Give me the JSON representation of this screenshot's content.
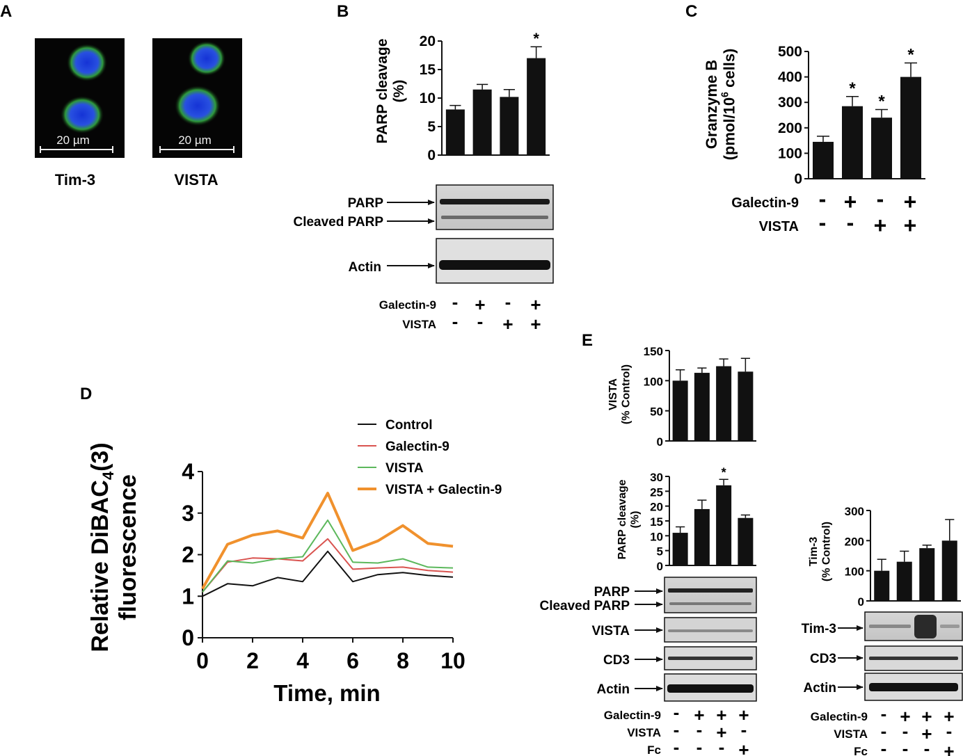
{
  "colors": {
    "bar": "#111111",
    "control": "#111111",
    "galectin": "#d9534f",
    "vista": "#5cb85c",
    "combo": "#f0912d",
    "nucleus": "#1c3fd9",
    "membrane": "#2fa83a"
  },
  "panelA": {
    "letter": "A",
    "images": [
      {
        "label": "Tim-3",
        "scale": "20 µm"
      },
      {
        "label": "VISTA",
        "scale": "20 µm"
      }
    ]
  },
  "panelB": {
    "letter": "B",
    "blot_labels": [
      "PARP",
      "Cleaved PARP",
      "Actin"
    ],
    "conditions": [
      {
        "name": "Galectin-9",
        "signs": [
          "-",
          "+",
          "-",
          "+"
        ]
      },
      {
        "name": "VISTA",
        "signs": [
          "-",
          "-",
          "+",
          "+"
        ]
      }
    ]
  },
  "panelC": {
    "letter": "C",
    "conditions": [
      {
        "name": "Galectin-9",
        "signs": [
          "-",
          "+",
          "-",
          "+"
        ]
      },
      {
        "name": "VISTA",
        "signs": [
          "-",
          "-",
          "+",
          "+"
        ]
      }
    ]
  },
  "panelD": {
    "letter": "D"
  },
  "panelE": {
    "letter": "E",
    "blot_labels_left": [
      "PARP",
      "Cleaved PARP",
      "VISTA",
      "CD3",
      "Actin"
    ],
    "blot_labels_right": [
      "Tim-3",
      "CD3",
      "Actin"
    ],
    "conditions": [
      {
        "name": "Galectin-9",
        "signs": [
          "-",
          "+",
          "+",
          "+"
        ]
      },
      {
        "name": "VISTA",
        "signs": [
          "-",
          "-",
          "+",
          "-"
        ]
      },
      {
        "name": "Fc",
        "signs": [
          "-",
          "-",
          "-",
          "+"
        ]
      }
    ]
  },
  "chart_data": [
    {
      "id": "B",
      "type": "bar",
      "title": "",
      "ylabel": "PARP cleavage (%)",
      "ylim": [
        0,
        20
      ],
      "yticks": [
        "0",
        "5",
        "10",
        "15",
        "20"
      ],
      "values": [
        8,
        11.5,
        10.2,
        17
      ],
      "errors": [
        0.7,
        0.9,
        1.3,
        2.0
      ],
      "significance": [
        "",
        "",
        "",
        "*"
      ]
    },
    {
      "id": "C",
      "type": "bar",
      "title": "",
      "ylabel": "Granzyme B (pmol/10^6 cells)",
      "ylabel_line1": "Granzyme B",
      "ylabel_line2": "(pmol/10",
      "ylabel_sup": "6",
      "ylabel_line2b": " cells)",
      "ylim": [
        0,
        500
      ],
      "yticks": [
        "0",
        "100",
        "200",
        "300",
        "400",
        "500"
      ],
      "values": [
        145,
        285,
        240,
        400
      ],
      "errors": [
        22,
        38,
        32,
        55
      ],
      "significance": [
        "",
        "*",
        "*",
        "*"
      ]
    },
    {
      "id": "D",
      "type": "line",
      "title": "",
      "xlabel": "Time, min",
      "ylabel_main": "Relative DiBAC",
      "ylabel_sub": "4",
      "ylabel_tail": "(3)",
      "ylabel_line2": "fluorescence",
      "xlim": [
        0,
        10
      ],
      "ylim": [
        0,
        4
      ],
      "xticks": [
        "0",
        "2",
        "4",
        "6",
        "8",
        "10"
      ],
      "yticks": [
        "0",
        "1",
        "2",
        "3",
        "4"
      ],
      "x": [
        0,
        1,
        2,
        3,
        4,
        5,
        6,
        7,
        8,
        9,
        10
      ],
      "series": [
        {
          "name": "Control",
          "values": [
            1.0,
            1.3,
            1.25,
            1.45,
            1.35,
            2.08,
            1.35,
            1.52,
            1.57,
            1.5,
            1.46
          ]
        },
        {
          "name": "Galectin-9",
          "values": [
            1.1,
            1.82,
            1.92,
            1.9,
            1.85,
            2.38,
            1.65,
            1.68,
            1.7,
            1.62,
            1.58
          ]
        },
        {
          "name": "VISTA",
          "values": [
            1.1,
            1.85,
            1.8,
            1.9,
            1.95,
            2.83,
            1.82,
            1.8,
            1.9,
            1.7,
            1.68
          ]
        },
        {
          "name": "VISTA + Galectin-9",
          "values": [
            1.18,
            2.25,
            2.47,
            2.57,
            2.4,
            3.48,
            2.1,
            2.33,
            2.7,
            2.27,
            2.2
          ]
        }
      ]
    },
    {
      "id": "E-VISTA",
      "type": "bar",
      "ylabel_line1": "VISTA",
      "ylabel_line2": "(% Control)",
      "ylim": [
        0,
        150
      ],
      "yticks": [
        "0",
        "50",
        "100",
        "150"
      ],
      "values": [
        100,
        113,
        124,
        115
      ],
      "errors": [
        18,
        8,
        12,
        22
      ],
      "significance": [
        "",
        "",
        "",
        ""
      ]
    },
    {
      "id": "E-PARP",
      "type": "bar",
      "ylabel_line1": "PARP cleavage",
      "ylabel_line2": "(%)",
      "ylim": [
        0,
        30
      ],
      "yticks": [
        "0",
        "5",
        "10",
        "15",
        "20",
        "25",
        "30"
      ],
      "values": [
        11,
        19,
        27,
        16
      ],
      "errors": [
        2,
        3,
        2,
        1
      ],
      "significance": [
        "",
        "",
        "*",
        ""
      ]
    },
    {
      "id": "E-Tim3",
      "type": "bar",
      "ylabel_line1": "Tim-3",
      "ylabel_line2": "(% Control)",
      "ylim": [
        0,
        300
      ],
      "yticks": [
        "0",
        "100",
        "200",
        "300"
      ],
      "values": [
        100,
        130,
        175,
        200
      ],
      "errors": [
        38,
        35,
        10,
        70
      ],
      "significance": [
        "",
        "",
        "",
        ""
      ]
    }
  ]
}
